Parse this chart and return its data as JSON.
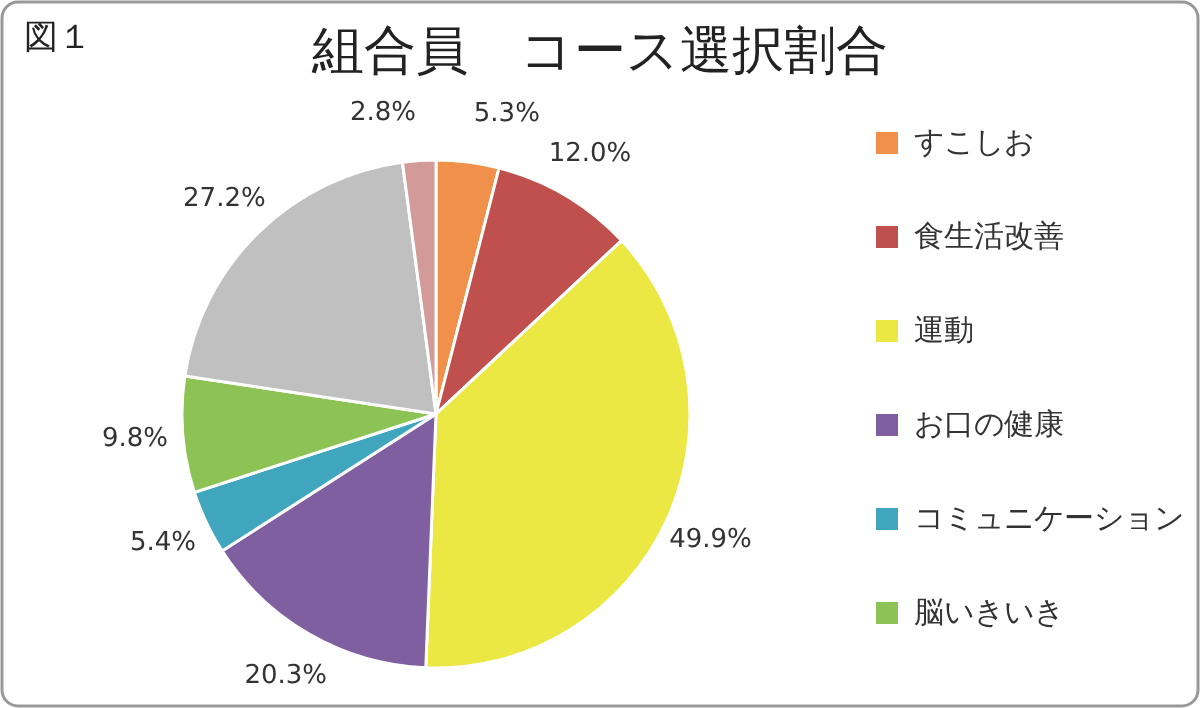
{
  "chart_data": {
    "type": "pie",
    "title": "組合員　コース選択割合",
    "annotations": [
      "図１"
    ],
    "categories": [
      "すこしお",
      "食生活改善",
      "運動",
      "お口の健康",
      "コミュニケーション",
      "脳いきいき",
      null,
      null
    ],
    "values": [
      5.3,
      12.0,
      49.9,
      20.3,
      5.4,
      9.8,
      27.2,
      2.8
    ],
    "value_labels": [
      "5.3%",
      "12.0%",
      "49.9%",
      "20.3%",
      "5.4%",
      "9.8%",
      "27.2%",
      "2.8%"
    ],
    "colors": [
      "#f0904a",
      "#c0504d",
      "#ebe843",
      "#7f5fa0",
      "#3fa6be",
      "#8dc354",
      "#c0c0c0",
      "#d39a9a"
    ],
    "legend": "right"
  }
}
